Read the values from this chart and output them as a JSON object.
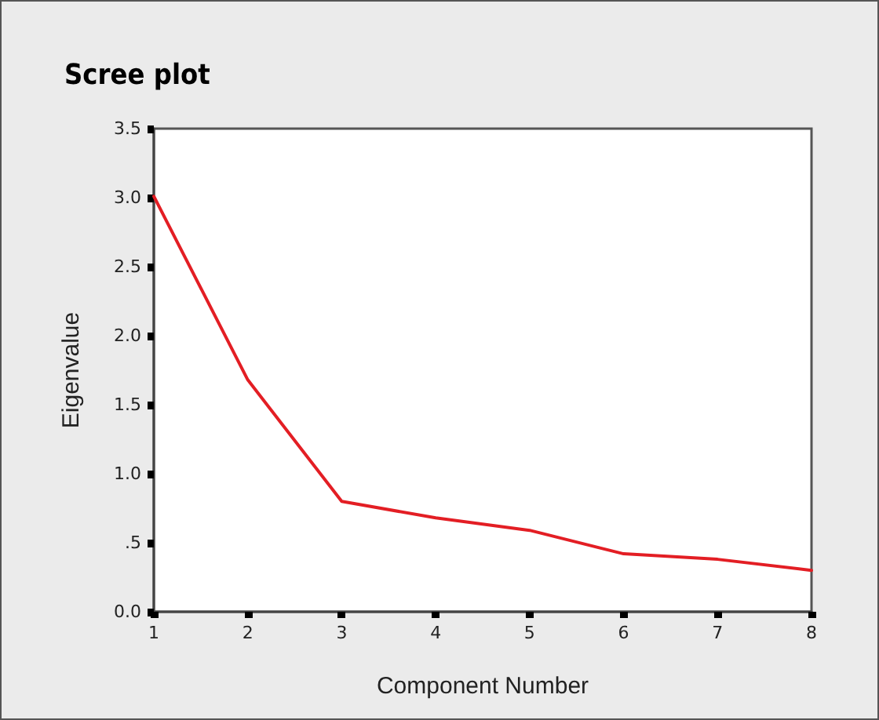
{
  "chart_data": {
    "type": "line",
    "title": "Scree plot",
    "xlabel": "Component Number",
    "ylabel": "Eigenvalue",
    "x": [
      1,
      2,
      3,
      4,
      5,
      6,
      7,
      8
    ],
    "series": [
      {
        "color": "#e31e24",
        "values": [
          3.01,
          1.68,
          0.8,
          0.68,
          0.59,
          0.42,
          0.38,
          0.3
        ]
      }
    ],
    "xlim": [
      1,
      8
    ],
    "xticks": [
      1,
      2,
      3,
      4,
      5,
      6,
      7,
      8
    ],
    "ylim": [
      0,
      3.5
    ],
    "yticks": [
      {
        "value": 0,
        "label": "0.0"
      },
      {
        "value": 0.5,
        "label": ".5"
      },
      {
        "value": 1,
        "label": "1.0"
      },
      {
        "value": 1.5,
        "label": "1.5"
      },
      {
        "value": 2,
        "label": "2.0"
      },
      {
        "value": 2.5,
        "label": "2.5"
      },
      {
        "value": 3,
        "label": "3.0"
      },
      {
        "value": 3.5,
        "label": "3.5"
      }
    ],
    "grid": false,
    "marker": "none",
    "line_style": "solid"
  }
}
